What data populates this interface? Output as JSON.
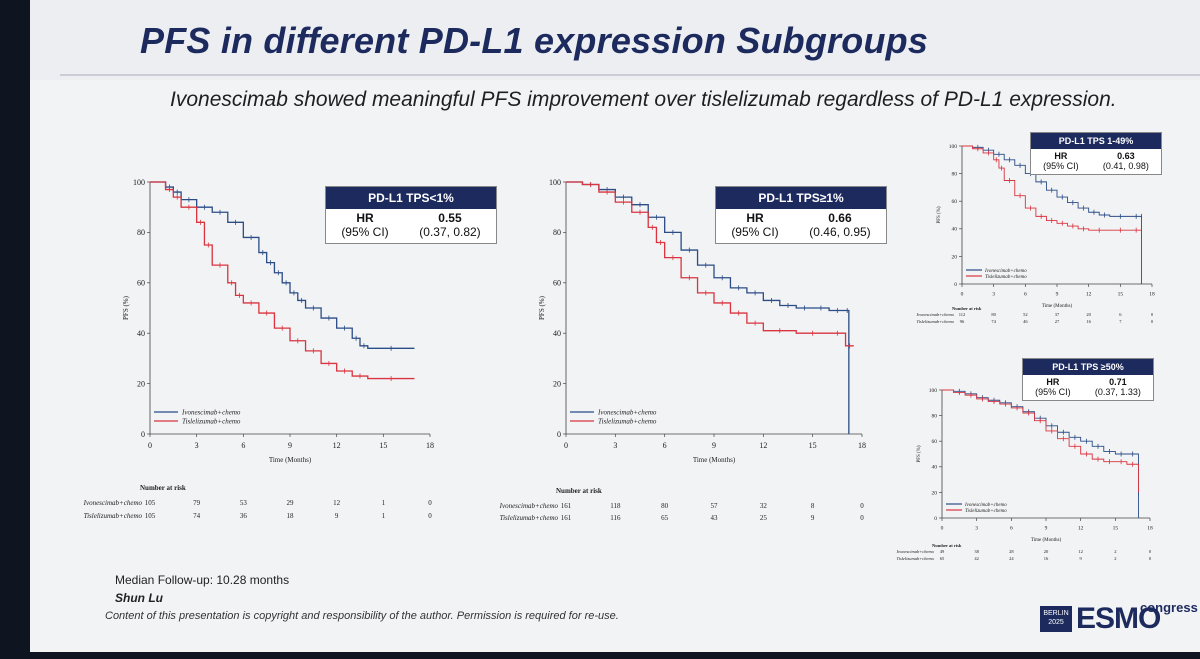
{
  "slide": {
    "title": "PFS in different PD-L1 expression Subgroups",
    "subtitle": "Ivonescimab showed meaningful PFS improvement over tislelizumab regardless of PD-L1 expression.",
    "footer": {
      "follow_up": "Median Follow-up: 10.28 months",
      "author": "Shun Lu",
      "copyright": "Content of this presentation is copyright and responsibility of the author. Permission is required for re-use."
    },
    "logo": {
      "badge_line1": "BERLIN",
      "badge_line2": "2025",
      "word": "ESMO",
      "suffix": "congress"
    },
    "colors": {
      "ivonescimab": "#2b4c86",
      "tislelizumab": "#d9343f",
      "header": "#1c2a5e"
    }
  },
  "chart_data": [
    {
      "id": "tps-lt1",
      "type": "line",
      "box_title": "PD-L1 TPS<1%",
      "hr_label": "HR",
      "ci_label": "(95% CI)",
      "hr": "0.55",
      "ci": "(0.37, 0.82)",
      "xlabel": "Time (Months)",
      "ylabel": "PFS (%)",
      "xlim": [
        0,
        18
      ],
      "ylim": [
        0,
        100
      ],
      "xticks": [
        "0",
        "3",
        "6",
        "9",
        "12",
        "15",
        "18"
      ],
      "yticks": [
        "0",
        "20",
        "40",
        "60",
        "80",
        "100"
      ],
      "risk_title": "Number at risk",
      "series": [
        {
          "name": "Ivonescimab+chemo",
          "color": "#2b4c86",
          "x": [
            0,
            1,
            1.5,
            2,
            3,
            4,
            5,
            6,
            7,
            7.5,
            8,
            8.5,
            9,
            9.5,
            10,
            11,
            12,
            13,
            13.5,
            14,
            17
          ],
          "y": [
            100,
            98,
            96,
            93,
            90,
            88,
            84,
            78,
            72,
            68,
            64,
            60,
            56,
            53,
            50,
            46,
            42,
            38,
            35,
            34,
            34
          ],
          "risk": [
            "105",
            "79",
            "53",
            "29",
            "12",
            "1",
            "0"
          ]
        },
        {
          "name": "Tislelizumab+chemo",
          "color": "#d9343f",
          "x": [
            0,
            1,
            1.5,
            2,
            3,
            3.5,
            4,
            5,
            5.5,
            6,
            7,
            8,
            9,
            10,
            11,
            12,
            13,
            14,
            17
          ],
          "y": [
            100,
            97,
            94,
            90,
            84,
            75,
            67,
            60,
            55,
            52,
            48,
            42,
            37,
            33,
            28,
            25,
            23,
            22,
            22
          ],
          "risk": [
            "105",
            "74",
            "36",
            "18",
            "9",
            "1",
            "0"
          ]
        }
      ]
    },
    {
      "id": "tps-ge1",
      "type": "line",
      "box_title": "PD-L1 TPS≥1%",
      "hr_label": "HR",
      "ci_label": "(95% CI)",
      "hr": "0.66",
      "ci": "(0.46, 0.95)",
      "xlabel": "Time (Months)",
      "ylabel": "PFS (%)",
      "xlim": [
        0,
        18
      ],
      "ylim": [
        0,
        100
      ],
      "xticks": [
        "0",
        "3",
        "6",
        "9",
        "12",
        "15",
        "18"
      ],
      "yticks": [
        "0",
        "20",
        "40",
        "60",
        "80",
        "100"
      ],
      "risk_title": "Number at risk",
      "series": [
        {
          "name": "Ivonescimab+chemo",
          "color": "#2b4c86",
          "x": [
            0,
            1,
            2,
            3,
            4,
            5,
            6,
            7,
            8,
            9,
            10,
            11,
            12,
            13,
            14,
            15,
            16,
            17,
            17.2,
            17.2
          ],
          "y": [
            100,
            99,
            97,
            94,
            91,
            86,
            80,
            73,
            67,
            62,
            58,
            56,
            53,
            51,
            50,
            50,
            49,
            49,
            38,
            0
          ],
          "risk": [
            "161",
            "118",
            "80",
            "57",
            "32",
            "8",
            "0"
          ]
        },
        {
          "name": "Tislelizumab+chemo",
          "color": "#d9343f",
          "x": [
            0,
            1,
            2,
            3,
            4,
            5,
            5.5,
            6,
            7,
            8,
            9,
            10,
            11,
            12,
            14,
            16,
            17,
            17.5
          ],
          "y": [
            100,
            99,
            96,
            92,
            88,
            82,
            76,
            70,
            62,
            56,
            52,
            48,
            44,
            41,
            40,
            40,
            35,
            35
          ],
          "risk": [
            "161",
            "116",
            "65",
            "43",
            "25",
            "9",
            "0"
          ]
        }
      ]
    },
    {
      "id": "tps-1-49",
      "type": "line",
      "box_title": "PD-L1 TPS 1-49%",
      "hr_label": "HR",
      "ci_label": "(95% CI)",
      "hr": "0.63",
      "ci": "(0.41, 0.98)",
      "xlabel": "Time (Months)",
      "ylabel": "PFS (%)",
      "xlim": [
        0,
        18
      ],
      "ylim": [
        0,
        100
      ],
      "xticks": [
        "0",
        "3",
        "6",
        "9",
        "12",
        "15",
        "18"
      ],
      "yticks": [
        "0",
        "20",
        "40",
        "60",
        "80",
        "100"
      ],
      "risk_title": "Number at risk",
      "series": [
        {
          "name": "Ivonescimab+chemo",
          "color": "#2b4c86",
          "x": [
            0,
            1,
            2,
            3,
            4,
            5,
            6,
            7,
            8,
            9,
            10,
            11,
            12,
            13,
            14,
            16,
            17,
            17
          ],
          "y": [
            100,
            99,
            97,
            94,
            90,
            86,
            80,
            74,
            68,
            63,
            59,
            55,
            52,
            50,
            49,
            49,
            49,
            0
          ],
          "risk": [
            "112",
            "80",
            "52",
            "37",
            "20",
            "6",
            "0"
          ]
        },
        {
          "name": "Tislelizumab+chemo",
          "color": "#d9343f",
          "x": [
            0,
            1,
            2,
            3,
            3.5,
            4,
            5,
            6,
            7,
            8,
            9,
            10,
            11,
            12,
            14,
            16,
            17
          ],
          "y": [
            100,
            98,
            95,
            90,
            84,
            75,
            64,
            55,
            49,
            46,
            44,
            42,
            40,
            39,
            39,
            39,
            39
          ],
          "risk": [
            "96",
            "74",
            "46",
            "27",
            "16",
            "7",
            "0"
          ]
        }
      ]
    },
    {
      "id": "tps-ge50",
      "type": "line",
      "box_title": "PD-L1 TPS ≥50%",
      "hr_label": "HR",
      "ci_label": "(95% CI)",
      "hr": "0.71",
      "ci": "(0.37, 1.33)",
      "xlabel": "Time (Months)",
      "ylabel": "PFS (%)",
      "xlim": [
        0,
        18
      ],
      "ylim": [
        0,
        100
      ],
      "xticks": [
        "0",
        "3",
        "6",
        "9",
        "12",
        "15",
        "18"
      ],
      "yticks": [
        "0",
        "20",
        "40",
        "60",
        "80",
        "100"
      ],
      "risk_title": "Number at risk",
      "series": [
        {
          "name": "Ivonescimab+chemo",
          "color": "#2b4c86",
          "x": [
            0,
            1,
            2,
            3,
            4,
            5,
            6,
            7,
            8,
            9,
            10,
            11,
            12,
            13,
            14,
            15,
            16,
            17,
            17
          ],
          "y": [
            100,
            99,
            97,
            94,
            92,
            90,
            87,
            83,
            78,
            72,
            67,
            63,
            60,
            56,
            52,
            50,
            50,
            20,
            0
          ],
          "risk": [
            "49",
            "38",
            "28",
            "20",
            "12",
            "2",
            "0"
          ]
        },
        {
          "name": "Tislelizumab+chemo",
          "color": "#d9343f",
          "x": [
            0,
            1,
            2,
            3,
            4,
            5,
            6,
            7,
            8,
            9,
            10,
            11,
            12,
            13,
            14,
            15,
            16,
            17
          ],
          "y": [
            100,
            98,
            96,
            93,
            91,
            89,
            86,
            82,
            76,
            68,
            62,
            56,
            50,
            46,
            44,
            44,
            42,
            20
          ],
          "risk": [
            "65",
            "42",
            "24",
            "16",
            "9",
            "2",
            "0"
          ]
        }
      ]
    }
  ]
}
